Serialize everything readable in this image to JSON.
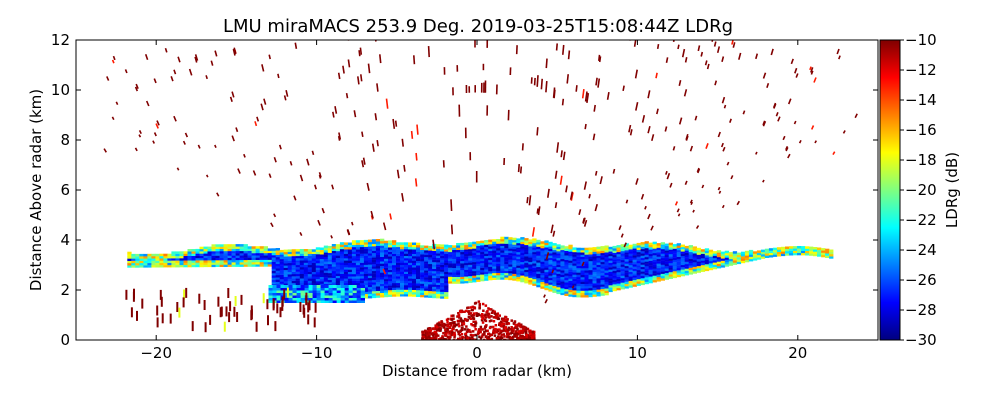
{
  "chart_data": {
    "type": "heatmap",
    "title": "LMU miraMACS 253.9 Deg. 2019-03-25T15:08:44Z  LDRg",
    "xlabel": "Distance from radar (km)",
    "ylabel": "Distance Above radar  (km)",
    "xlim": [
      -25,
      25
    ],
    "ylim": [
      0,
      12
    ],
    "xticks": [
      -20,
      -10,
      0,
      10,
      20
    ],
    "xtick_labels": [
      "−20",
      "−10",
      "0",
      "10",
      "20"
    ],
    "yticks": [
      0,
      2,
      4,
      6,
      8,
      10,
      12
    ],
    "ytick_labels": [
      "0",
      "2",
      "4",
      "6",
      "8",
      "10",
      "12"
    ],
    "colorbar": {
      "label": "LDRg (dB)",
      "range": [
        -30,
        -10
      ],
      "colormap": "jet",
      "ticks": [
        -10,
        -12,
        -14,
        -16,
        -18,
        -20,
        -22,
        -24,
        -26,
        -28,
        -30
      ],
      "tick_labels": [
        "−10",
        "−12",
        "−14",
        "−16",
        "−18",
        "−20",
        "−22",
        "−24",
        "−26",
        "−28",
        "−30"
      ]
    },
    "scan": {
      "azimuth_deg": 253.9,
      "timestamp": "2019-03-25T15:08:44Z",
      "product": "LDRg"
    },
    "features": {
      "main_layer_altitude_km": [
        2,
        4
      ],
      "main_layer_ldr_db": -27,
      "layer_edges_ldr_db": -20,
      "near_ground_clutter_ldr_db": -11,
      "noise_ldr_db": -10,
      "scan_extent_km": [
        -22,
        22
      ]
    }
  }
}
